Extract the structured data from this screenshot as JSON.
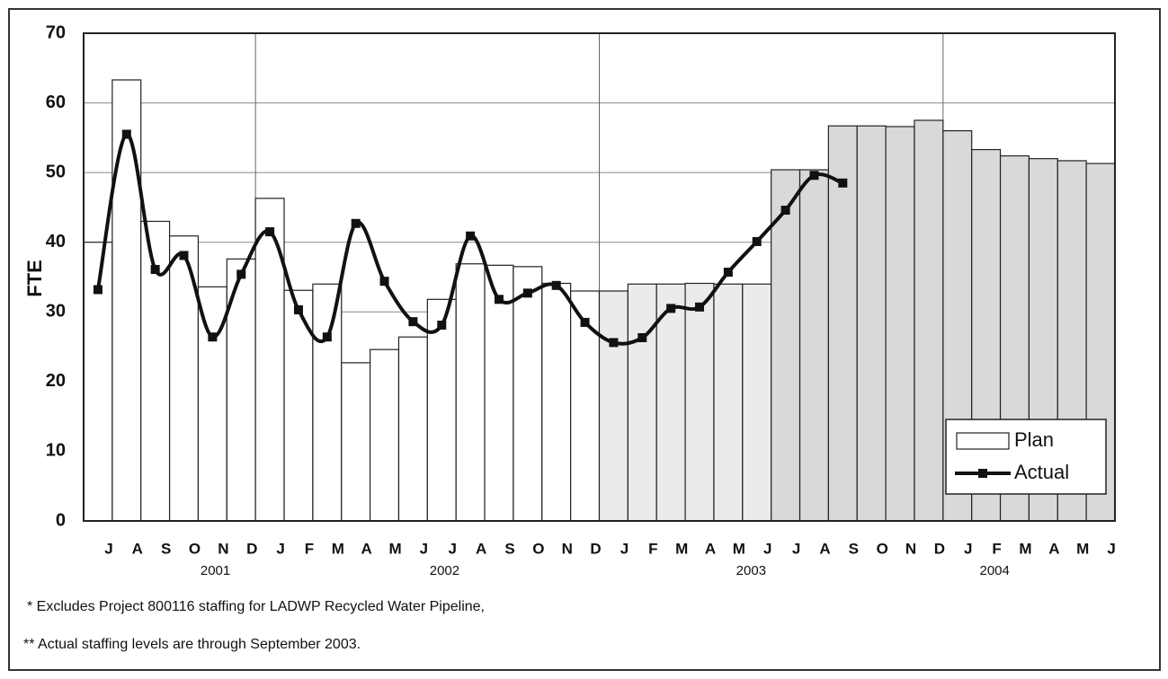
{
  "chart_data": {
    "type": "bar_line",
    "y_label": "FTE",
    "categories": [
      "J",
      "A",
      "S",
      "O",
      "N",
      "D",
      "J",
      "F",
      "M",
      "A",
      "M",
      "J",
      "J",
      "A",
      "S",
      "O",
      "N",
      "D",
      "J",
      "F",
      "M",
      "A",
      "M",
      "J",
      "J",
      "A",
      "S",
      "O",
      "N",
      "D",
      "J",
      "F",
      "M",
      "A",
      "M",
      "J"
    ],
    "years": [
      "2001",
      "2002",
      "2003",
      "2004"
    ],
    "series": [
      {
        "name": "Plan",
        "type": "bar",
        "color": "#ffffff",
        "colors": [
          "#ffffff",
          "#ffffff",
          "#ffffff",
          "#ffffff",
          "#ffffff",
          "#ffffff",
          "#ffffff",
          "#ffffff",
          "#ffffff",
          "#ffffff",
          "#ffffff",
          "#ffffff",
          "#ffffff",
          "#ffffff",
          "#ffffff",
          "#ffffff",
          "#ffffff",
          "#ffffff",
          "#ebebeb",
          "#ebebeb",
          "#ebebeb",
          "#ebebeb",
          "#ebebeb",
          "#ebebeb",
          "#d9d9d9",
          "#d9d9d9",
          "#d9d9d9",
          "#d9d9d9",
          "#d9d9d9",
          "#d9d9d9",
          "#d9d9d9",
          "#d9d9d9",
          "#d9d9d9",
          "#d9d9d9",
          "#d9d9d9",
          "#d9d9d9"
        ],
        "values": [
          40,
          63.3,
          43,
          40.9,
          33.6,
          37.6,
          46.3,
          33.1,
          34,
          22.7,
          24.6,
          26.4,
          31.8,
          36.9,
          36.7,
          36.5,
          34.1,
          33,
          33,
          34,
          34,
          34.1,
          34,
          34,
          50.4,
          50.4,
          56.7,
          56.7,
          56.6,
          57.5,
          56,
          53.3,
          52.4,
          52,
          51.7,
          51.3
        ]
      },
      {
        "name": "Actual",
        "type": "line",
        "color": "#111111",
        "values": [
          33.2,
          55.5,
          36.1,
          38.1,
          26.4,
          35.4,
          41.5,
          30.3,
          26.4,
          42.7,
          34.4,
          28.6,
          28.1,
          40.9,
          31.8,
          32.7,
          33.8,
          28.5,
          25.6,
          26.3,
          30.5,
          30.7,
          35.7,
          40.1,
          44.6,
          49.6,
          48.5,
          null,
          null,
          null,
          null,
          null,
          null,
          null,
          null,
          null
        ]
      }
    ],
    "ylim": [
      0,
      70
    ],
    "yticks": [
      0,
      10,
      20,
      30,
      40,
      50,
      60,
      70
    ],
    "grid": true,
    "legend": "lower right",
    "notes": [
      "*  Excludes Project 800116 staffing for LADWP Recycled Water Pipeline,",
      "**   Actual staffing levels are through September 2003."
    ]
  }
}
